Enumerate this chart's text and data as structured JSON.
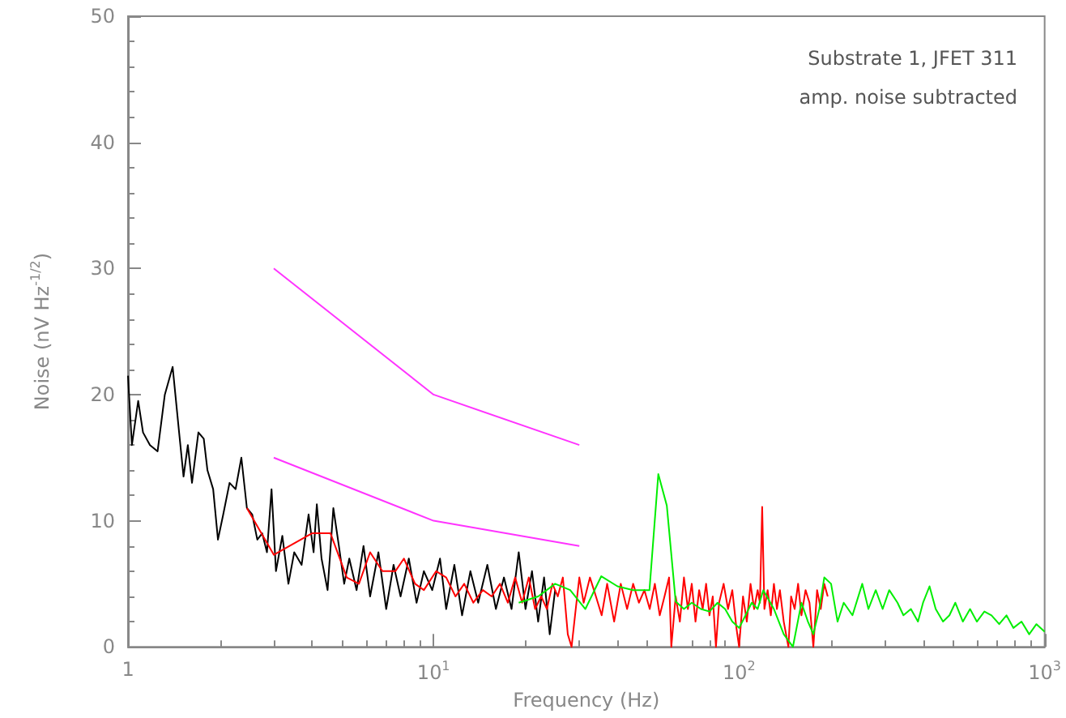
{
  "chart_data": {
    "type": "line",
    "xlabel": "Frequency (Hz)",
    "ylabel": "Noise (nV Hz$^{-1/2}$)",
    "log": "x",
    "xlim": [
      1,
      1000
    ],
    "xticks": [
      1,
      {
        "value": 10,
        "label": "10$^{1}$"
      },
      {
        "value": 100,
        "label": "10$^{2}$"
      },
      {
        "value": 1000,
        "label": "10$^{3}$"
      }
    ],
    "ylim": [
      0,
      50
    ],
    "yticks": [
      0,
      10,
      20,
      30,
      40,
      50
    ],
    "grid": false,
    "annotations": [
      "Substrate 1, JFET 311",
      "amp. noise subtracted"
    ],
    "series": [
      {
        "color": "#000000",
        "x": [
          1.0,
          1.03,
          1.08,
          1.12,
          1.18,
          1.25,
          1.32,
          1.4,
          1.47,
          1.52,
          1.57,
          1.62,
          1.7,
          1.77,
          1.82,
          1.9,
          1.97,
          2.05,
          2.15,
          2.25,
          2.35,
          2.45,
          2.55,
          2.65,
          2.75,
          2.85,
          2.95,
          3.05,
          3.2,
          3.35,
          3.5,
          3.7,
          3.9,
          4.05,
          4.15,
          4.3,
          4.5,
          4.7,
          4.9,
          5.1,
          5.3,
          5.6,
          5.9,
          6.2,
          6.6,
          7.0,
          7.4,
          7.8,
          8.3,
          8.8,
          9.3,
          9.9,
          10.5,
          11,
          11.7,
          12.4,
          13.2,
          14,
          15,
          16,
          17,
          18,
          19,
          20,
          21,
          22,
          23,
          24,
          25
        ],
        "values": [
          21.5,
          16,
          19.5,
          17,
          16,
          15.5,
          20,
          22.2,
          17,
          13.5,
          16,
          13,
          17,
          16.5,
          14,
          12.5,
          8.5,
          10.5,
          13,
          12.5,
          15,
          11,
          10.5,
          8.5,
          9,
          7.5,
          12.5,
          6,
          8.8,
          5,
          7.5,
          6.5,
          10.5,
          7.5,
          11.3,
          7,
          4.5,
          11,
          8,
          5,
          7,
          4.5,
          8,
          4,
          7.5,
          3,
          6.5,
          4,
          7,
          3.5,
          6,
          4.5,
          7,
          3,
          6.5,
          2.5,
          6,
          3.5,
          6.5,
          3,
          5.5,
          3,
          7.5,
          3,
          6,
          2,
          5.5,
          1,
          4.5
        ]
      },
      {
        "color": "#ff0000",
        "x": [
          2.45,
          3.0,
          4.0,
          4.6,
          5.2,
          5.7,
          6.2,
          6.8,
          7.5,
          8.0,
          8.7,
          9.3,
          10.2,
          11,
          11.8,
          12.6,
          13.5,
          14.5,
          15.5,
          16.5,
          17.5,
          18.5,
          19.5,
          20.5,
          21.5,
          22.5,
          23.5,
          24.5,
          25.5,
          26.5,
          27.5,
          28.3,
          29.2,
          30,
          31,
          32.5,
          34,
          35.5,
          37,
          39,
          41,
          43,
          45,
          47,
          49,
          51,
          53,
          55,
          57,
          59,
          60,
          62,
          64,
          66,
          68,
          70,
          72,
          74,
          76,
          78,
          80,
          82,
          84,
          86,
          89,
          92,
          95,
          98,
          100,
          103,
          106,
          109,
          112,
          115,
          117,
          119,
          121,
          124,
          127,
          130,
          133,
          136,
          140,
          145,
          148,
          152,
          156,
          160,
          165,
          170,
          175,
          180,
          185,
          190,
          195
        ],
        "values": [
          11,
          7.3,
          9,
          9,
          5.5,
          5,
          7.5,
          6,
          6,
          7,
          5,
          4.5,
          6,
          5.5,
          4,
          5,
          3.5,
          4.5,
          4,
          5,
          3.5,
          5.5,
          3.5,
          5.5,
          3,
          4,
          3,
          5,
          4,
          5.5,
          1,
          0,
          3,
          5.5,
          3.5,
          5.5,
          4,
          2.5,
          5,
          2,
          5,
          3,
          5,
          3.5,
          4.5,
          3,
          5,
          2.5,
          4,
          5.5,
          0,
          4,
          2,
          5.5,
          3,
          5,
          2,
          4.5,
          3,
          5,
          2.5,
          4,
          0,
          3.5,
          5,
          3,
          4.5,
          1.5,
          0,
          4,
          2,
          5,
          3,
          4.5,
          3.5,
          11.1,
          3,
          4.5,
          2.5,
          5,
          3,
          4.5,
          2,
          0,
          4,
          3,
          5,
          2.5,
          4.5,
          3.5,
          0,
          4.5,
          3,
          5,
          4
        ]
      },
      {
        "color": "#00ee00",
        "x": [
          19,
          22,
          25,
          28,
          31.4,
          35.4,
          40,
          45,
          50.9,
          54.4,
          58,
          62,
          66,
          70,
          75,
          80,
          85,
          90,
          95,
          100,
          105,
          110,
          115,
          120,
          130,
          140,
          150,
          160,
          168,
          175,
          183,
          190,
          200,
          210,
          220,
          235,
          253,
          265,
          280,
          295,
          310,
          330,
          345,
          365,
          385,
          400,
          420,
          440,
          465,
          488,
          510,
          540,
          570,
          600,
          635,
          670,
          710,
          750,
          790,
          840,
          890,
          940,
          1000
        ],
        "values": [
          3.5,
          4,
          5,
          4.5,
          3,
          5.6,
          4.8,
          4.5,
          4.5,
          13.7,
          11.2,
          3.6,
          3,
          3.5,
          3,
          2.8,
          3.5,
          3,
          2,
          1.5,
          2.5,
          3.5,
          3,
          4.5,
          3,
          1,
          0,
          3.5,
          2,
          1,
          3,
          5.5,
          5,
          2,
          3.5,
          2.5,
          5,
          3,
          4.5,
          3,
          4.5,
          3.5,
          2.5,
          3,
          2,
          3.5,
          4.8,
          3,
          2,
          2.5,
          3.5,
          2,
          3,
          2,
          2.8,
          2.5,
          1.8,
          2.5,
          1.5,
          2,
          1,
          1.8,
          1.2
        ]
      },
      {
        "color": "#ff33ff",
        "x": [
          3,
          10,
          30
        ],
        "values": [
          30,
          20,
          16
        ]
      },
      {
        "color": "#ff33ff",
        "x": [
          3,
          10,
          30
        ],
        "values": [
          15,
          10,
          8
        ]
      }
    ]
  }
}
